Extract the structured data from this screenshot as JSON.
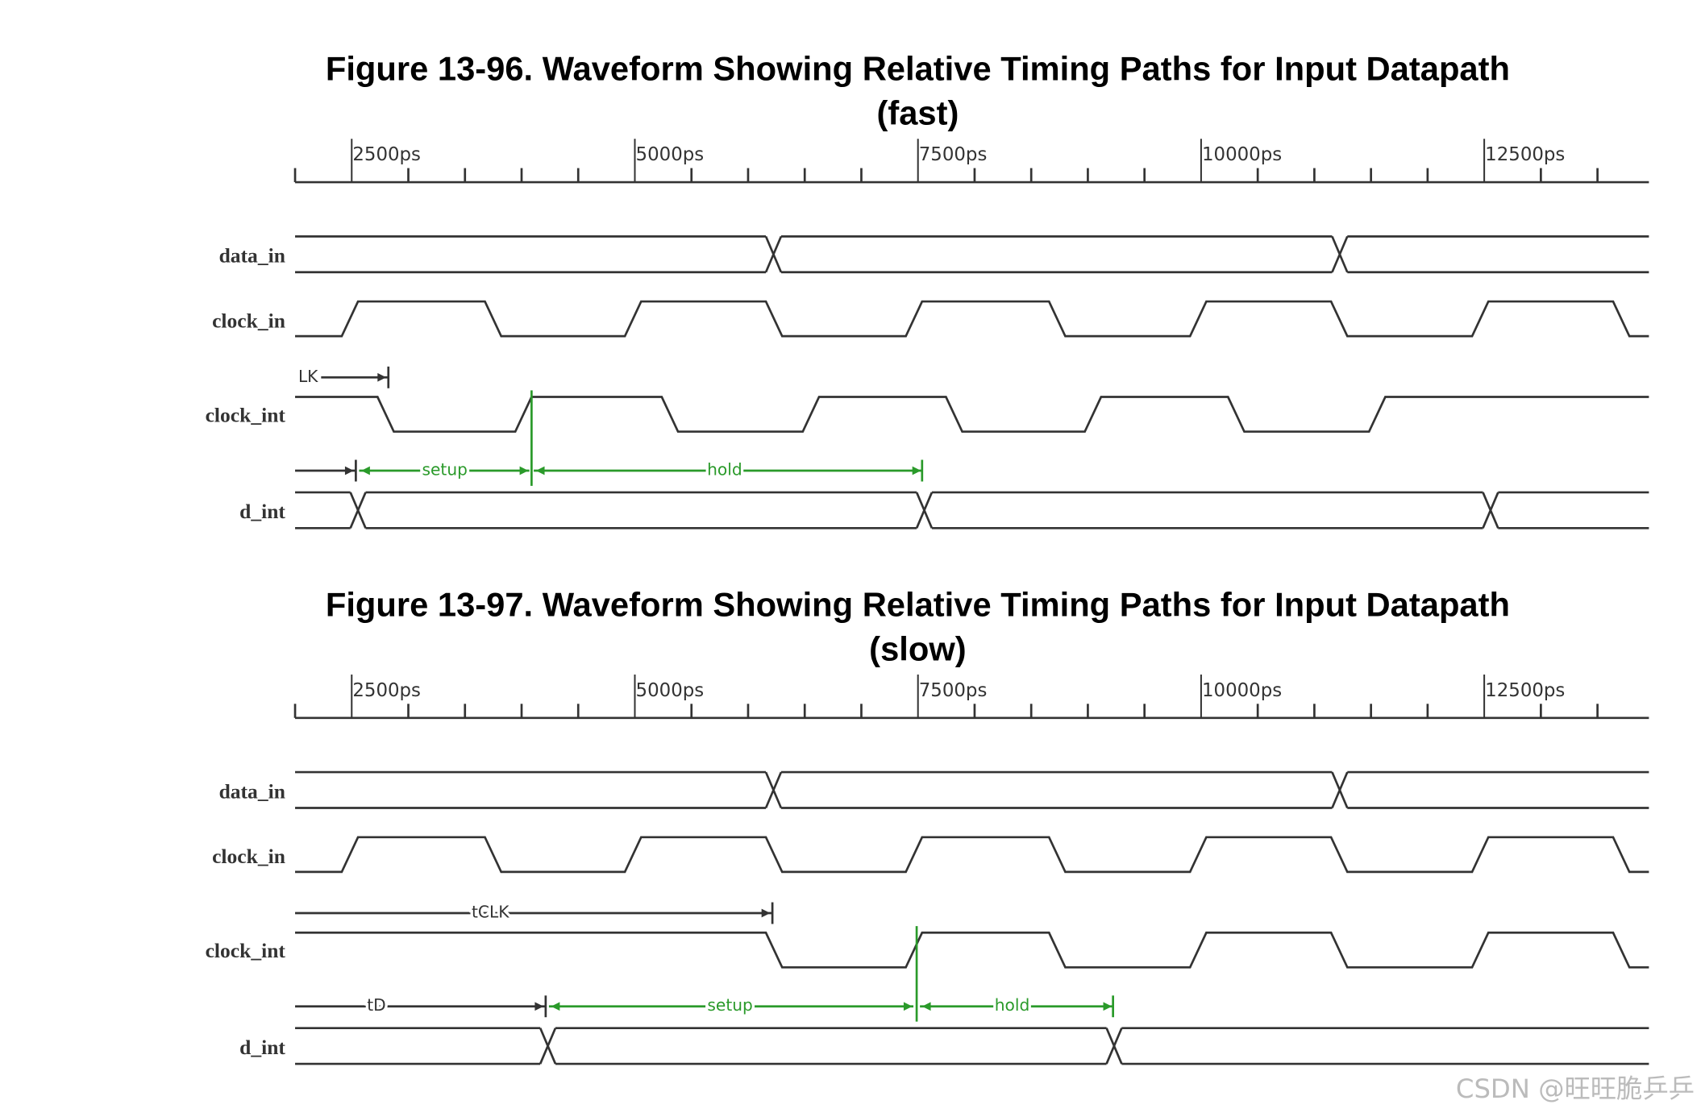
{
  "figures": [
    {
      "title_lines": [
        "Figure 13-96. Waveform Showing Relative Timing Paths for Input Datapath",
        "(fast)"
      ],
      "axis_ticks": [
        "2500ps",
        "5000ps",
        "7500ps",
        "10000ps",
        "12500ps"
      ],
      "signals": [
        "data_in",
        "clock_in",
        "clock_int",
        "d_int"
      ],
      "annotations": [
        "LK",
        "setup",
        "hold"
      ]
    },
    {
      "title_lines": [
        "Figure 13-97. Waveform Showing Relative Timing Paths for Input Datapath",
        "(slow)"
      ],
      "axis_ticks": [
        "2500ps",
        "5000ps",
        "7500ps",
        "10000ps",
        "12500ps"
      ],
      "signals": [
        "data_in",
        "clock_in",
        "clock_int",
        "d_int"
      ],
      "annotations": [
        "tCLK",
        "tD",
        "setup",
        "hold"
      ]
    }
  ],
  "watermark": "CSDN @旺旺脆乒乒"
}
